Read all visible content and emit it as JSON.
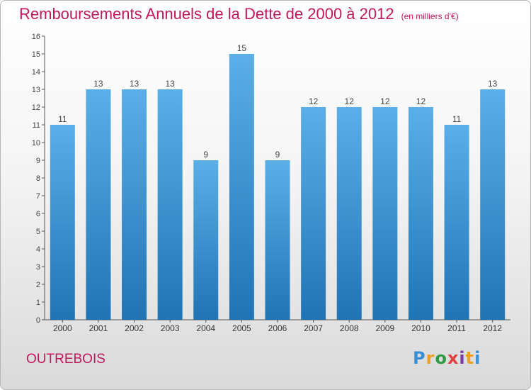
{
  "header": {
    "title": "Remboursements Annuels de la Dette de 2000 à 2012",
    "subtitle": "(en milliers d'€)"
  },
  "footer": {
    "commune": "OUTREBOIS",
    "logo": "Proxiti"
  },
  "colors": {
    "title": "#c2185b",
    "bar_top": "#5aafe8",
    "bar_bottom": "#2174b4"
  },
  "chart_data": {
    "type": "bar",
    "title": "Remboursements Annuels de la Dette de 2000 à 2012",
    "subtitle": "(en milliers d'€)",
    "categories": [
      "2000",
      "2001",
      "2002",
      "2003",
      "2004",
      "2005",
      "2006",
      "2007",
      "2008",
      "2009",
      "2010",
      "2011",
      "2012"
    ],
    "values": [
      11,
      13,
      13,
      13,
      9,
      15,
      9,
      12,
      12,
      12,
      12,
      11,
      13
    ],
    "ylim": [
      0,
      16
    ],
    "yticks": [
      0,
      1,
      2,
      3,
      4,
      5,
      6,
      7,
      8,
      9,
      10,
      11,
      12,
      13,
      14,
      15,
      16
    ],
    "grid": false,
    "data_labels": true
  }
}
